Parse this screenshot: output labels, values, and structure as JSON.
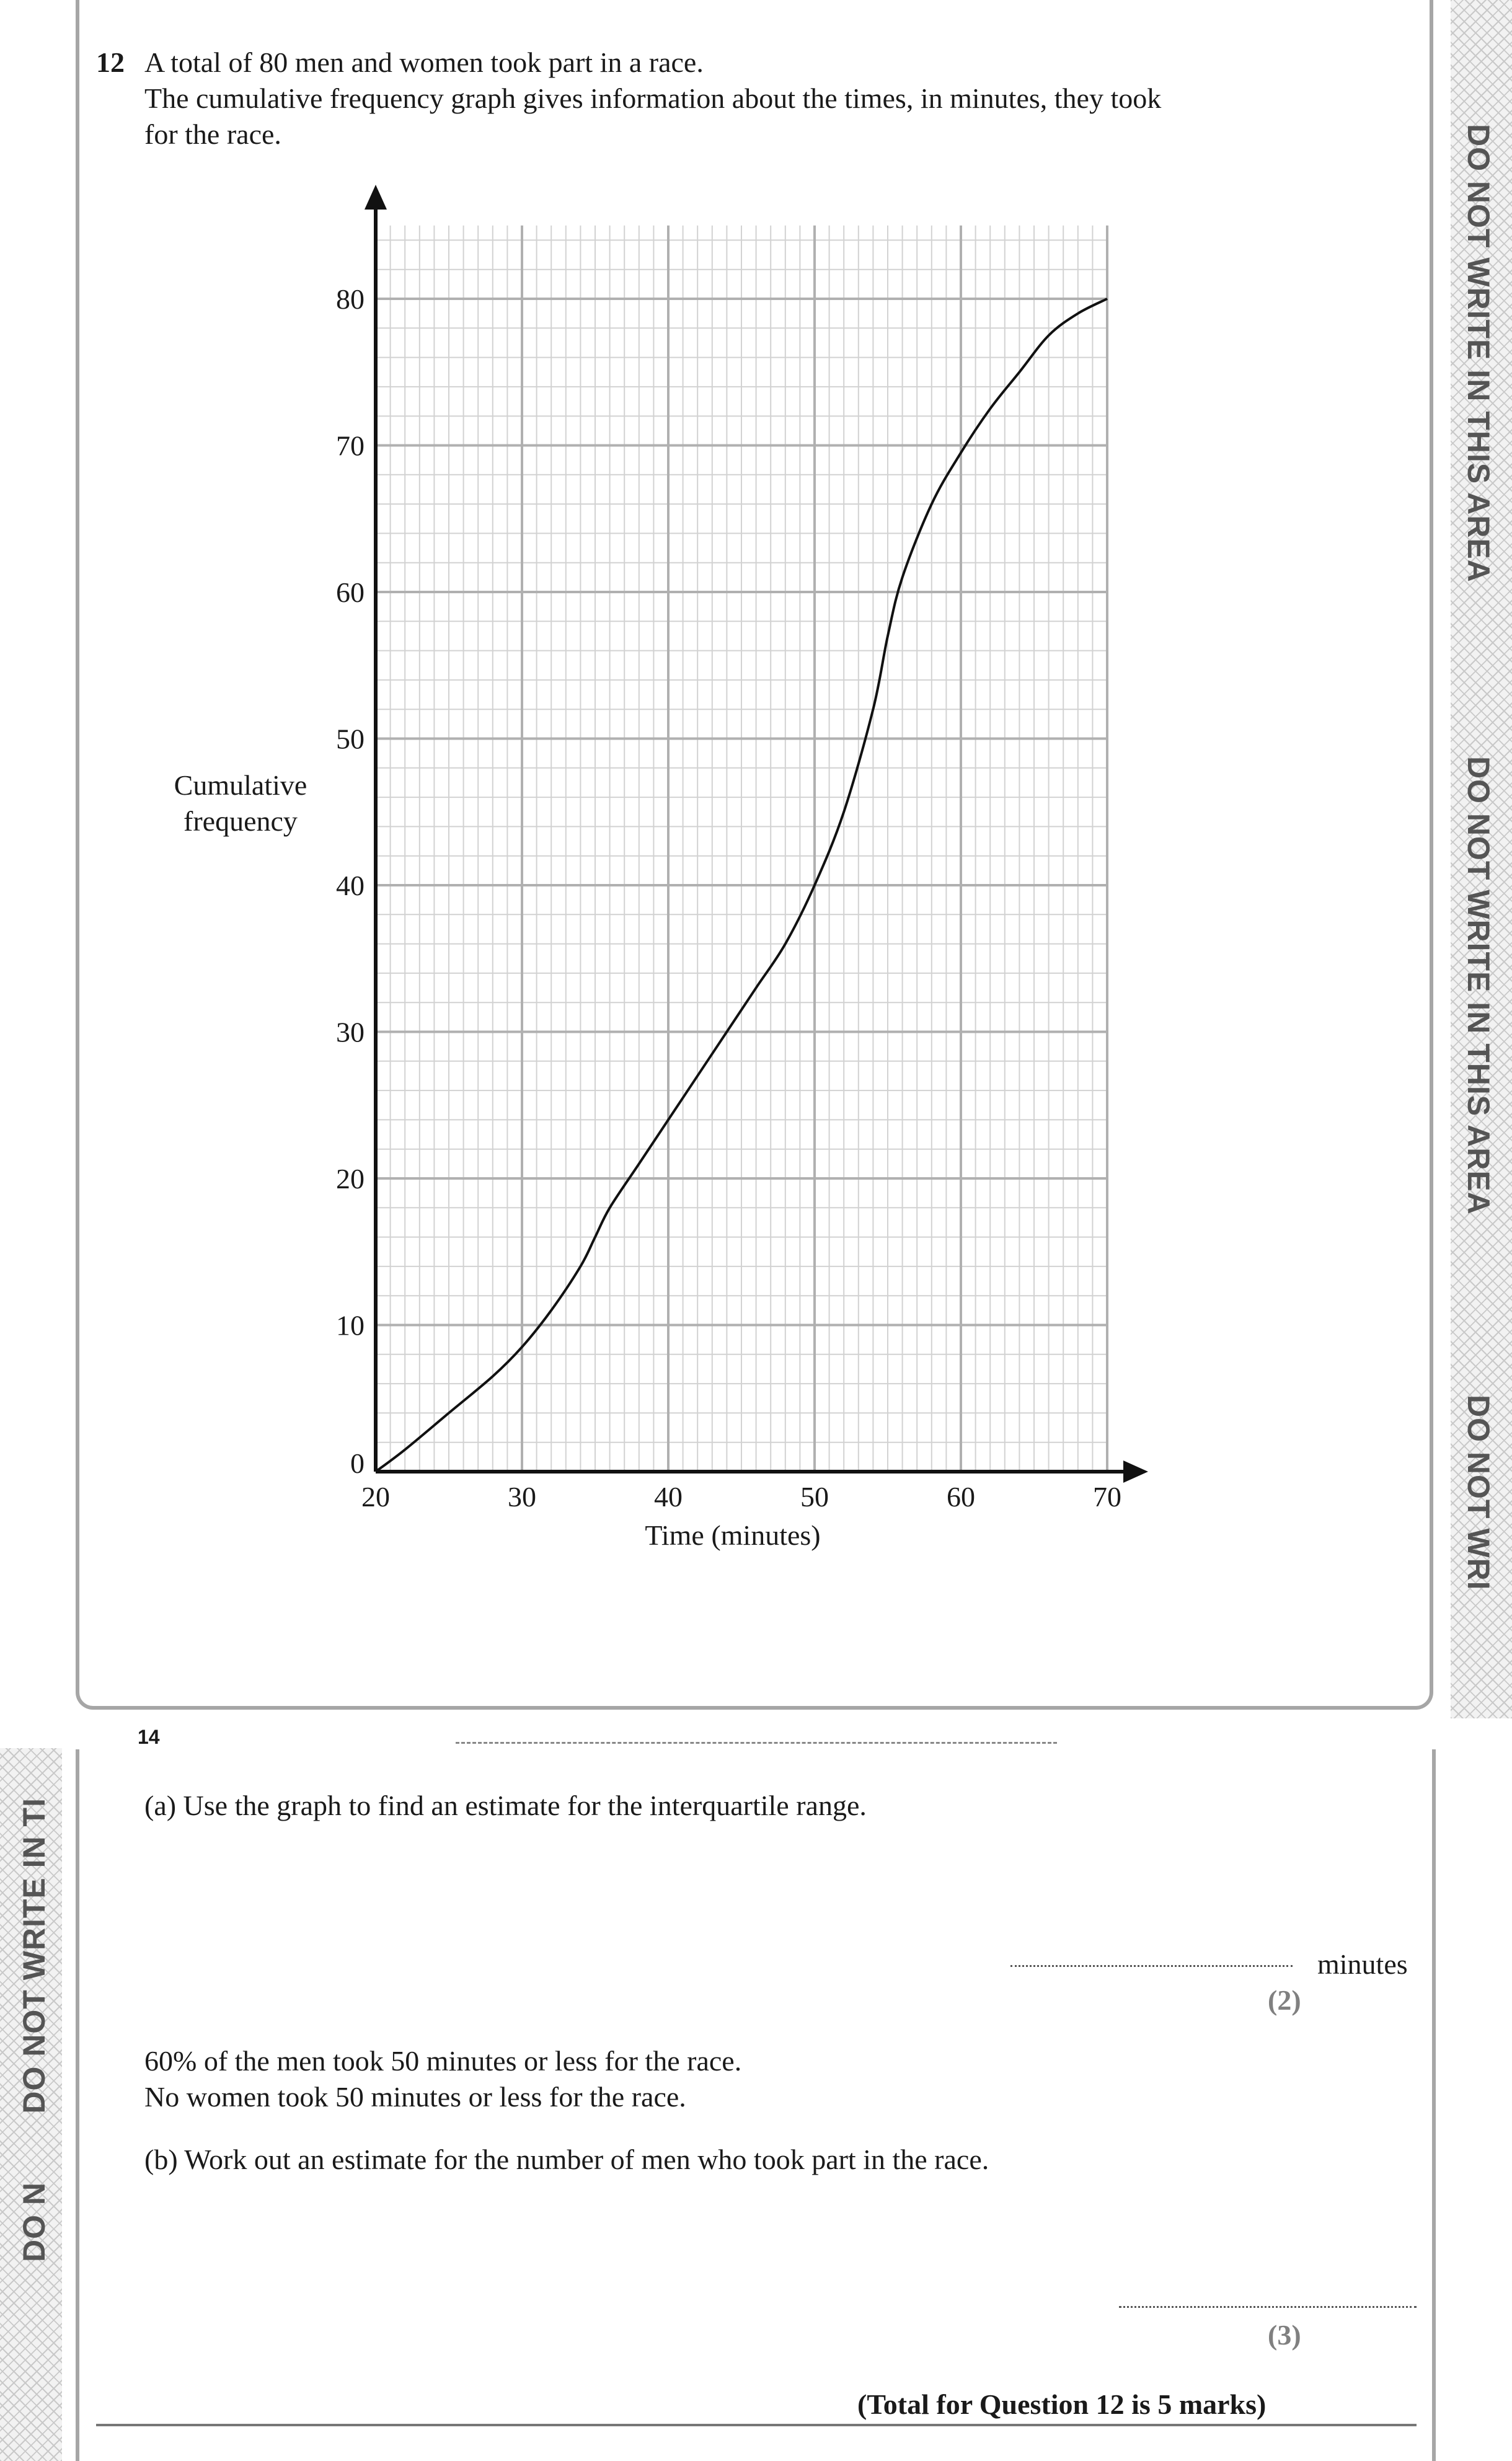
{
  "question": {
    "number": "12",
    "intro_line1": "A total of 80 men and women took part in a race.",
    "intro_line2": "The cumulative frequency graph gives information about the times, in minutes, they took",
    "intro_line3": "for the race."
  },
  "chart_data": {
    "type": "line",
    "xlabel": "Time (minutes)",
    "ylabel_line1": "Cumulative",
    "ylabel_line2": "frequency",
    "xlim": [
      20,
      70
    ],
    "ylim": [
      0,
      85
    ],
    "x_ticks": [
      20,
      30,
      40,
      50,
      60,
      70
    ],
    "y_ticks": [
      0,
      10,
      20,
      30,
      40,
      50,
      60,
      70,
      80
    ],
    "grid": true,
    "series": [
      {
        "x": [
          20,
          22,
          25,
          28,
          30,
          32,
          34,
          35,
          36,
          38,
          40,
          42,
          44,
          46,
          48,
          50,
          52,
          54,
          55,
          56,
          58,
          60,
          62,
          64,
          66,
          68,
          70
        ],
        "y": [
          0,
          1.5,
          4,
          6.5,
          8.5,
          11,
          14,
          16,
          18,
          21,
          24,
          27,
          30,
          33,
          36,
          40,
          45,
          52,
          57,
          61,
          66,
          69.5,
          72.5,
          75,
          77.5,
          79,
          80
        ]
      }
    ]
  },
  "page_number": "14",
  "part_a": {
    "text": "(a)  Use the graph to find an estimate for the interquartile range.",
    "unit": "minutes",
    "marks": "(2)"
  },
  "info": {
    "line1": "60% of the men took 50 minutes or less for the race.",
    "line2": "No women took 50 minutes or less for the race."
  },
  "part_b": {
    "text": "(b)  Work out an estimate for the number of men who took part in the race.",
    "marks": "(3)"
  },
  "total": "(Total for Question 12 is 5 marks)",
  "margin": {
    "right_1": "DO NOT WRITE IN THIS AREA",
    "right_2": "DO NOT WRITE IN THIS AREA",
    "right_3": "DO NOT WRI",
    "left_1": "DO NOT WRITE IN TI",
    "left_2": "DO N"
  }
}
